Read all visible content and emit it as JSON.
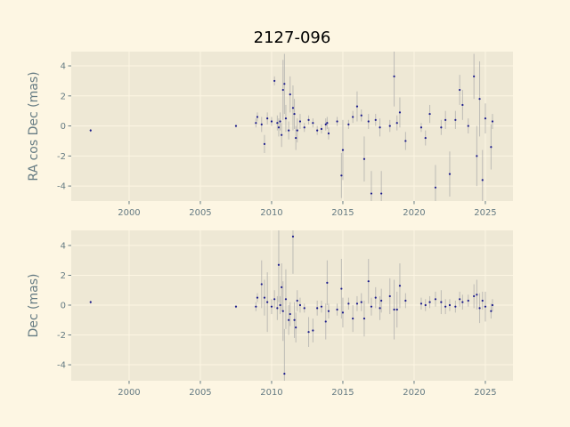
{
  "chart_data": [
    {
      "type": "scatter",
      "title": "2127-096",
      "y_label": "RA cos Dec (mas)",
      "x": [
        1997.3,
        2007.5,
        2008.9,
        2009.0,
        2009.3,
        2009.5,
        2009.7,
        2010.0,
        2010.2,
        2010.4,
        2010.5,
        2010.6,
        2010.7,
        2010.8,
        2010.9,
        2011.0,
        2011.2,
        2011.3,
        2011.5,
        2011.6,
        2011.7,
        2011.8,
        2012.0,
        2012.3,
        2012.6,
        2012.9,
        2013.2,
        2013.5,
        2013.8,
        2013.9,
        2014.0,
        2014.6,
        2014.9,
        2015.0,
        2015.4,
        2015.7,
        2016.0,
        2016.3,
        2016.5,
        2016.8,
        2017.0,
        2017.3,
        2017.6,
        2017.7,
        2018.3,
        2018.6,
        2018.8,
        2019.0,
        2019.4,
        2020.5,
        2020.8,
        2021.1,
        2021.5,
        2021.9,
        2022.2,
        2022.5,
        2022.9,
        2023.2,
        2023.4,
        2023.8,
        2024.2,
        2024.4,
        2024.6,
        2024.8,
        2025.0,
        2025.4,
        2025.5
      ],
      "values": [
        -0.3,
        0.0,
        0.2,
        0.6,
        0.1,
        -1.2,
        0.5,
        0.3,
        3.0,
        0.2,
        -0.1,
        0.3,
        -0.6,
        2.4,
        2.8,
        0.5,
        -0.3,
        2.1,
        1.2,
        0.8,
        -0.8,
        -0.3,
        0.3,
        -0.1,
        0.4,
        0.2,
        -0.3,
        -0.2,
        0.1,
        0.2,
        -0.5,
        0.3,
        -3.3,
        -1.6,
        0.1,
        0.6,
        1.3,
        0.7,
        -2.2,
        0.3,
        -4.5,
        0.4,
        -0.1,
        -4.5,
        0.0,
        3.3,
        0.2,
        0.9,
        -1.0,
        -0.1,
        -0.8,
        0.8,
        -4.1,
        -0.1,
        0.4,
        -3.2,
        0.4,
        2.4,
        1.4,
        0.0,
        3.3,
        -2.0,
        1.8,
        -3.6,
        0.5,
        -1.4,
        0.3
      ],
      "errors": [
        0.1,
        0.1,
        0.3,
        0.3,
        0.5,
        0.6,
        0.4,
        0.3,
        0.3,
        0.5,
        0.6,
        0.6,
        0.8,
        2.0,
        2.0,
        0.9,
        0.6,
        1.2,
        1.5,
        1.0,
        0.8,
        0.8,
        0.5,
        0.3,
        0.3,
        0.3,
        0.3,
        0.3,
        0.4,
        0.4,
        0.4,
        0.3,
        1.5,
        2.0,
        0.3,
        0.4,
        1.0,
        0.4,
        1.5,
        0.5,
        1.5,
        0.4,
        0.6,
        1.5,
        0.4,
        2.0,
        0.5,
        1.0,
        0.6,
        0.3,
        0.5,
        0.6,
        1.5,
        0.5,
        0.6,
        1.5,
        0.6,
        1.0,
        1.0,
        0.5,
        1.5,
        2.0,
        2.5,
        2.0,
        1.0,
        1.5,
        0.5
      ],
      "color": "#1a1a8c",
      "error_color": "#a8a8a8",
      "xlim": [
        1995.94,
        2026.94
      ],
      "ylim": [
        -5.0,
        4.95
      ],
      "xticks": [
        2000,
        2005,
        2010,
        2015,
        2020,
        2025
      ],
      "yticks": [
        -4,
        -2,
        0,
        2,
        4
      ],
      "grid": true
    },
    {
      "type": "scatter",
      "y_label": "Dec (mas)",
      "x": [
        1997.3,
        2007.5,
        2008.9,
        2009.0,
        2009.3,
        2009.5,
        2009.7,
        2010.0,
        2010.2,
        2010.4,
        2010.5,
        2010.6,
        2010.7,
        2010.8,
        2010.9,
        2011.0,
        2011.2,
        2011.3,
        2011.5,
        2011.6,
        2011.7,
        2011.8,
        2012.0,
        2012.3,
        2012.6,
        2012.9,
        2013.2,
        2013.5,
        2013.8,
        2013.9,
        2014.0,
        2014.6,
        2014.9,
        2015.0,
        2015.4,
        2015.7,
        2016.0,
        2016.3,
        2016.5,
        2016.8,
        2017.0,
        2017.3,
        2017.6,
        2017.7,
        2018.3,
        2018.6,
        2018.8,
        2019.0,
        2019.4,
        2020.5,
        2020.8,
        2021.1,
        2021.5,
        2021.9,
        2022.2,
        2022.5,
        2022.9,
        2023.2,
        2023.4,
        2023.8,
        2024.2,
        2024.4,
        2024.6,
        2024.8,
        2025.0,
        2025.4,
        2025.5
      ],
      "values": [
        0.2,
        -0.1,
        -0.1,
        0.5,
        1.4,
        0.5,
        0.2,
        -0.1,
        0.4,
        -0.2,
        2.7,
        0.0,
        1.2,
        -0.4,
        -4.6,
        0.4,
        -1.0,
        -0.6,
        4.6,
        -1.0,
        -1.5,
        0.3,
        0.0,
        -0.2,
        -1.8,
        -1.7,
        -0.2,
        -0.1,
        -1.1,
        1.5,
        -0.4,
        -0.3,
        1.1,
        -0.5,
        0.1,
        -0.9,
        0.1,
        0.2,
        -0.9,
        1.6,
        -0.1,
        0.5,
        -0.2,
        0.3,
        0.6,
        -0.3,
        -0.3,
        1.3,
        0.3,
        0.1,
        0.0,
        0.2,
        0.4,
        0.2,
        -0.1,
        0.0,
        -0.1,
        0.4,
        0.2,
        0.3,
        0.6,
        0.7,
        -0.2,
        0.3,
        -0.1,
        -0.4,
        0.0
      ],
      "errors": [
        0.1,
        0.1,
        0.3,
        0.3,
        1.6,
        1.2,
        2.0,
        0.5,
        0.6,
        0.8,
        2.5,
        0.6,
        1.6,
        2.0,
        3.0,
        2.0,
        1.0,
        0.8,
        2.5,
        1.2,
        1.0,
        0.7,
        0.5,
        0.3,
        1.0,
        0.8,
        0.5,
        0.4,
        1.2,
        1.5,
        0.5,
        0.4,
        2.0,
        1.0,
        0.4,
        0.9,
        0.5,
        0.6,
        1.2,
        1.5,
        0.6,
        0.7,
        0.8,
        0.8,
        1.2,
        2.0,
        1.2,
        1.5,
        0.5,
        0.4,
        0.4,
        0.4,
        0.5,
        0.8,
        0.5,
        0.4,
        0.4,
        0.5,
        0.5,
        0.4,
        0.8,
        1.0,
        1.0,
        0.6,
        1.0,
        0.5,
        0.4
      ],
      "color": "#1a1a8c",
      "error_color": "#a8a8a8",
      "xlim": [
        1995.94,
        2026.94
      ],
      "ylim": [
        -5.07,
        5.01
      ],
      "xticks": [
        2000,
        2005,
        2010,
        2015,
        2020,
        2025
      ],
      "yticks": [
        -4,
        -2,
        0,
        2,
        4
      ],
      "grid": true
    }
  ]
}
